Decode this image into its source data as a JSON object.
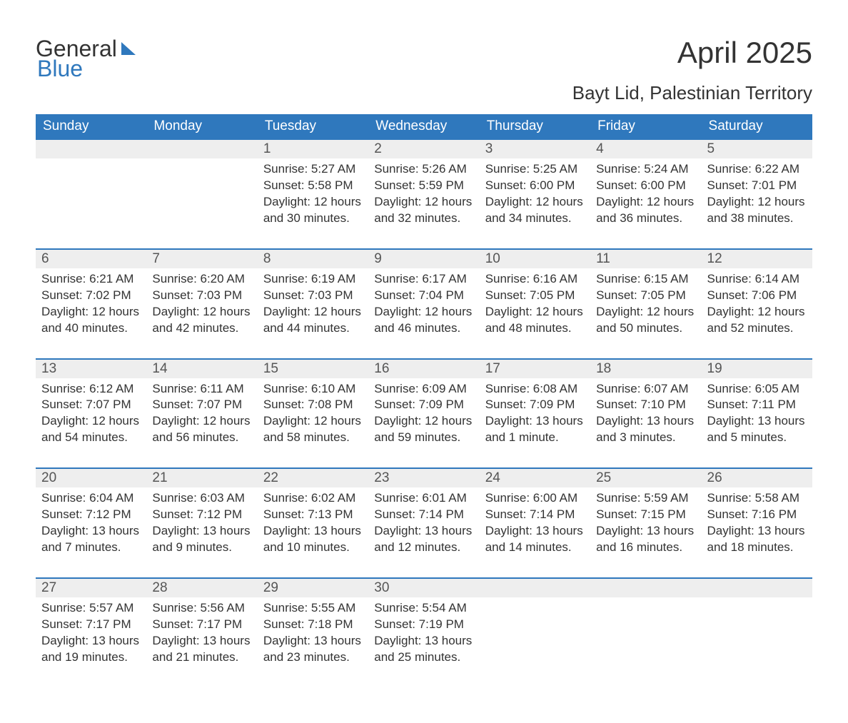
{
  "logo": {
    "text1": "General",
    "text2": "Blue"
  },
  "title": "April 2025",
  "subtitle": "Bayt Lid, Palestinian Territory",
  "colors": {
    "header_bg": "#2f78bd",
    "header_text": "#ffffff",
    "daynum_bg": "#eeeeee",
    "daynum_text": "#555555",
    "body_text": "#333333",
    "row_border": "#2f78bd",
    "logo_accent": "#2f78bd",
    "background": "#ffffff"
  },
  "typography": {
    "title_fontsize": 42,
    "subtitle_fontsize": 26,
    "header_fontsize": 19,
    "daynum_fontsize": 19,
    "cell_fontsize": 17,
    "font_family": "Segoe UI"
  },
  "days_of_week": [
    "Sunday",
    "Monday",
    "Tuesday",
    "Wednesday",
    "Thursday",
    "Friday",
    "Saturday"
  ],
  "labels": {
    "sunrise": "Sunrise:",
    "sunset": "Sunset:",
    "daylight": "Daylight:"
  },
  "weeks": [
    [
      null,
      null,
      {
        "n": "1",
        "sunrise": "5:27 AM",
        "sunset": "5:58 PM",
        "daylight": "12 hours and 30 minutes."
      },
      {
        "n": "2",
        "sunrise": "5:26 AM",
        "sunset": "5:59 PM",
        "daylight": "12 hours and 32 minutes."
      },
      {
        "n": "3",
        "sunrise": "5:25 AM",
        "sunset": "6:00 PM",
        "daylight": "12 hours and 34 minutes."
      },
      {
        "n": "4",
        "sunrise": "5:24 AM",
        "sunset": "6:00 PM",
        "daylight": "12 hours and 36 minutes."
      },
      {
        "n": "5",
        "sunrise": "6:22 AM",
        "sunset": "7:01 PM",
        "daylight": "12 hours and 38 minutes."
      }
    ],
    [
      {
        "n": "6",
        "sunrise": "6:21 AM",
        "sunset": "7:02 PM",
        "daylight": "12 hours and 40 minutes."
      },
      {
        "n": "7",
        "sunrise": "6:20 AM",
        "sunset": "7:03 PM",
        "daylight": "12 hours and 42 minutes."
      },
      {
        "n": "8",
        "sunrise": "6:19 AM",
        "sunset": "7:03 PM",
        "daylight": "12 hours and 44 minutes."
      },
      {
        "n": "9",
        "sunrise": "6:17 AM",
        "sunset": "7:04 PM",
        "daylight": "12 hours and 46 minutes."
      },
      {
        "n": "10",
        "sunrise": "6:16 AM",
        "sunset": "7:05 PM",
        "daylight": "12 hours and 48 minutes."
      },
      {
        "n": "11",
        "sunrise": "6:15 AM",
        "sunset": "7:05 PM",
        "daylight": "12 hours and 50 minutes."
      },
      {
        "n": "12",
        "sunrise": "6:14 AM",
        "sunset": "7:06 PM",
        "daylight": "12 hours and 52 minutes."
      }
    ],
    [
      {
        "n": "13",
        "sunrise": "6:12 AM",
        "sunset": "7:07 PM",
        "daylight": "12 hours and 54 minutes."
      },
      {
        "n": "14",
        "sunrise": "6:11 AM",
        "sunset": "7:07 PM",
        "daylight": "12 hours and 56 minutes."
      },
      {
        "n": "15",
        "sunrise": "6:10 AM",
        "sunset": "7:08 PM",
        "daylight": "12 hours and 58 minutes."
      },
      {
        "n": "16",
        "sunrise": "6:09 AM",
        "sunset": "7:09 PM",
        "daylight": "12 hours and 59 minutes."
      },
      {
        "n": "17",
        "sunrise": "6:08 AM",
        "sunset": "7:09 PM",
        "daylight": "13 hours and 1 minute."
      },
      {
        "n": "18",
        "sunrise": "6:07 AM",
        "sunset": "7:10 PM",
        "daylight": "13 hours and 3 minutes."
      },
      {
        "n": "19",
        "sunrise": "6:05 AM",
        "sunset": "7:11 PM",
        "daylight": "13 hours and 5 minutes."
      }
    ],
    [
      {
        "n": "20",
        "sunrise": "6:04 AM",
        "sunset": "7:12 PM",
        "daylight": "13 hours and 7 minutes."
      },
      {
        "n": "21",
        "sunrise": "6:03 AM",
        "sunset": "7:12 PM",
        "daylight": "13 hours and 9 minutes."
      },
      {
        "n": "22",
        "sunrise": "6:02 AM",
        "sunset": "7:13 PM",
        "daylight": "13 hours and 10 minutes."
      },
      {
        "n": "23",
        "sunrise": "6:01 AM",
        "sunset": "7:14 PM",
        "daylight": "13 hours and 12 minutes."
      },
      {
        "n": "24",
        "sunrise": "6:00 AM",
        "sunset": "7:14 PM",
        "daylight": "13 hours and 14 minutes."
      },
      {
        "n": "25",
        "sunrise": "5:59 AM",
        "sunset": "7:15 PM",
        "daylight": "13 hours and 16 minutes."
      },
      {
        "n": "26",
        "sunrise": "5:58 AM",
        "sunset": "7:16 PM",
        "daylight": "13 hours and 18 minutes."
      }
    ],
    [
      {
        "n": "27",
        "sunrise": "5:57 AM",
        "sunset": "7:17 PM",
        "daylight": "13 hours and 19 minutes."
      },
      {
        "n": "28",
        "sunrise": "5:56 AM",
        "sunset": "7:17 PM",
        "daylight": "13 hours and 21 minutes."
      },
      {
        "n": "29",
        "sunrise": "5:55 AM",
        "sunset": "7:18 PM",
        "daylight": "13 hours and 23 minutes."
      },
      {
        "n": "30",
        "sunrise": "5:54 AM",
        "sunset": "7:19 PM",
        "daylight": "13 hours and 25 minutes."
      },
      null,
      null,
      null
    ]
  ]
}
